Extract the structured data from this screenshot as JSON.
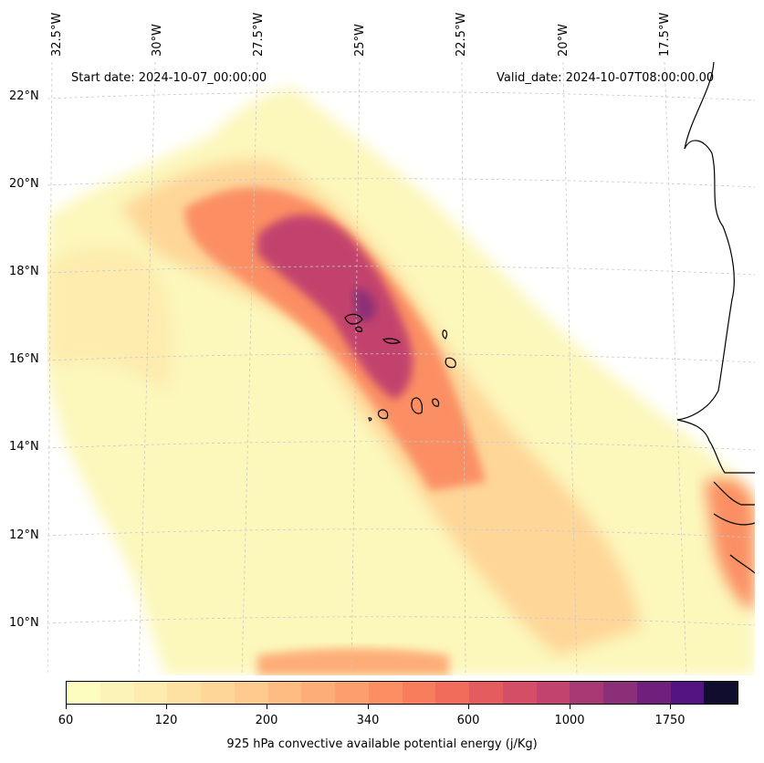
{
  "map": {
    "start_date": "Start date: 2024-10-07_00:00:00",
    "valid_date": "Valid_date: 2024-10-07T08:00:00.00",
    "lon_labels": [
      "32.5°W",
      "30°W",
      "27.5°W",
      "25°W",
      "22.5°W",
      "20°W",
      "17.5°W"
    ],
    "lat_labels": [
      "22°N",
      "20°N",
      "18°N",
      "16°N",
      "14°N",
      "12°N",
      "10°N"
    ],
    "gridlines": true
  },
  "colorbar": {
    "label": "925 hPa convective available potential energy (j/Kg)",
    "ticks": [
      "60",
      "120",
      "200",
      "340",
      "600",
      "1000",
      "1750"
    ],
    "colors": [
      "#fcfdbf",
      "#fcf4b6",
      "#fdecad",
      "#fde1a2",
      "#fed698",
      "#feca8d",
      "#febc82",
      "#fdad77",
      "#fd9f6c",
      "#fb8f63",
      "#f87d5c",
      "#f16c5a",
      "#e55c5e",
      "#d44e65",
      "#c2436d",
      "#a83874",
      "#8c2f79",
      "#701f7c",
      "#521480",
      "#110d2e"
    ]
  }
}
